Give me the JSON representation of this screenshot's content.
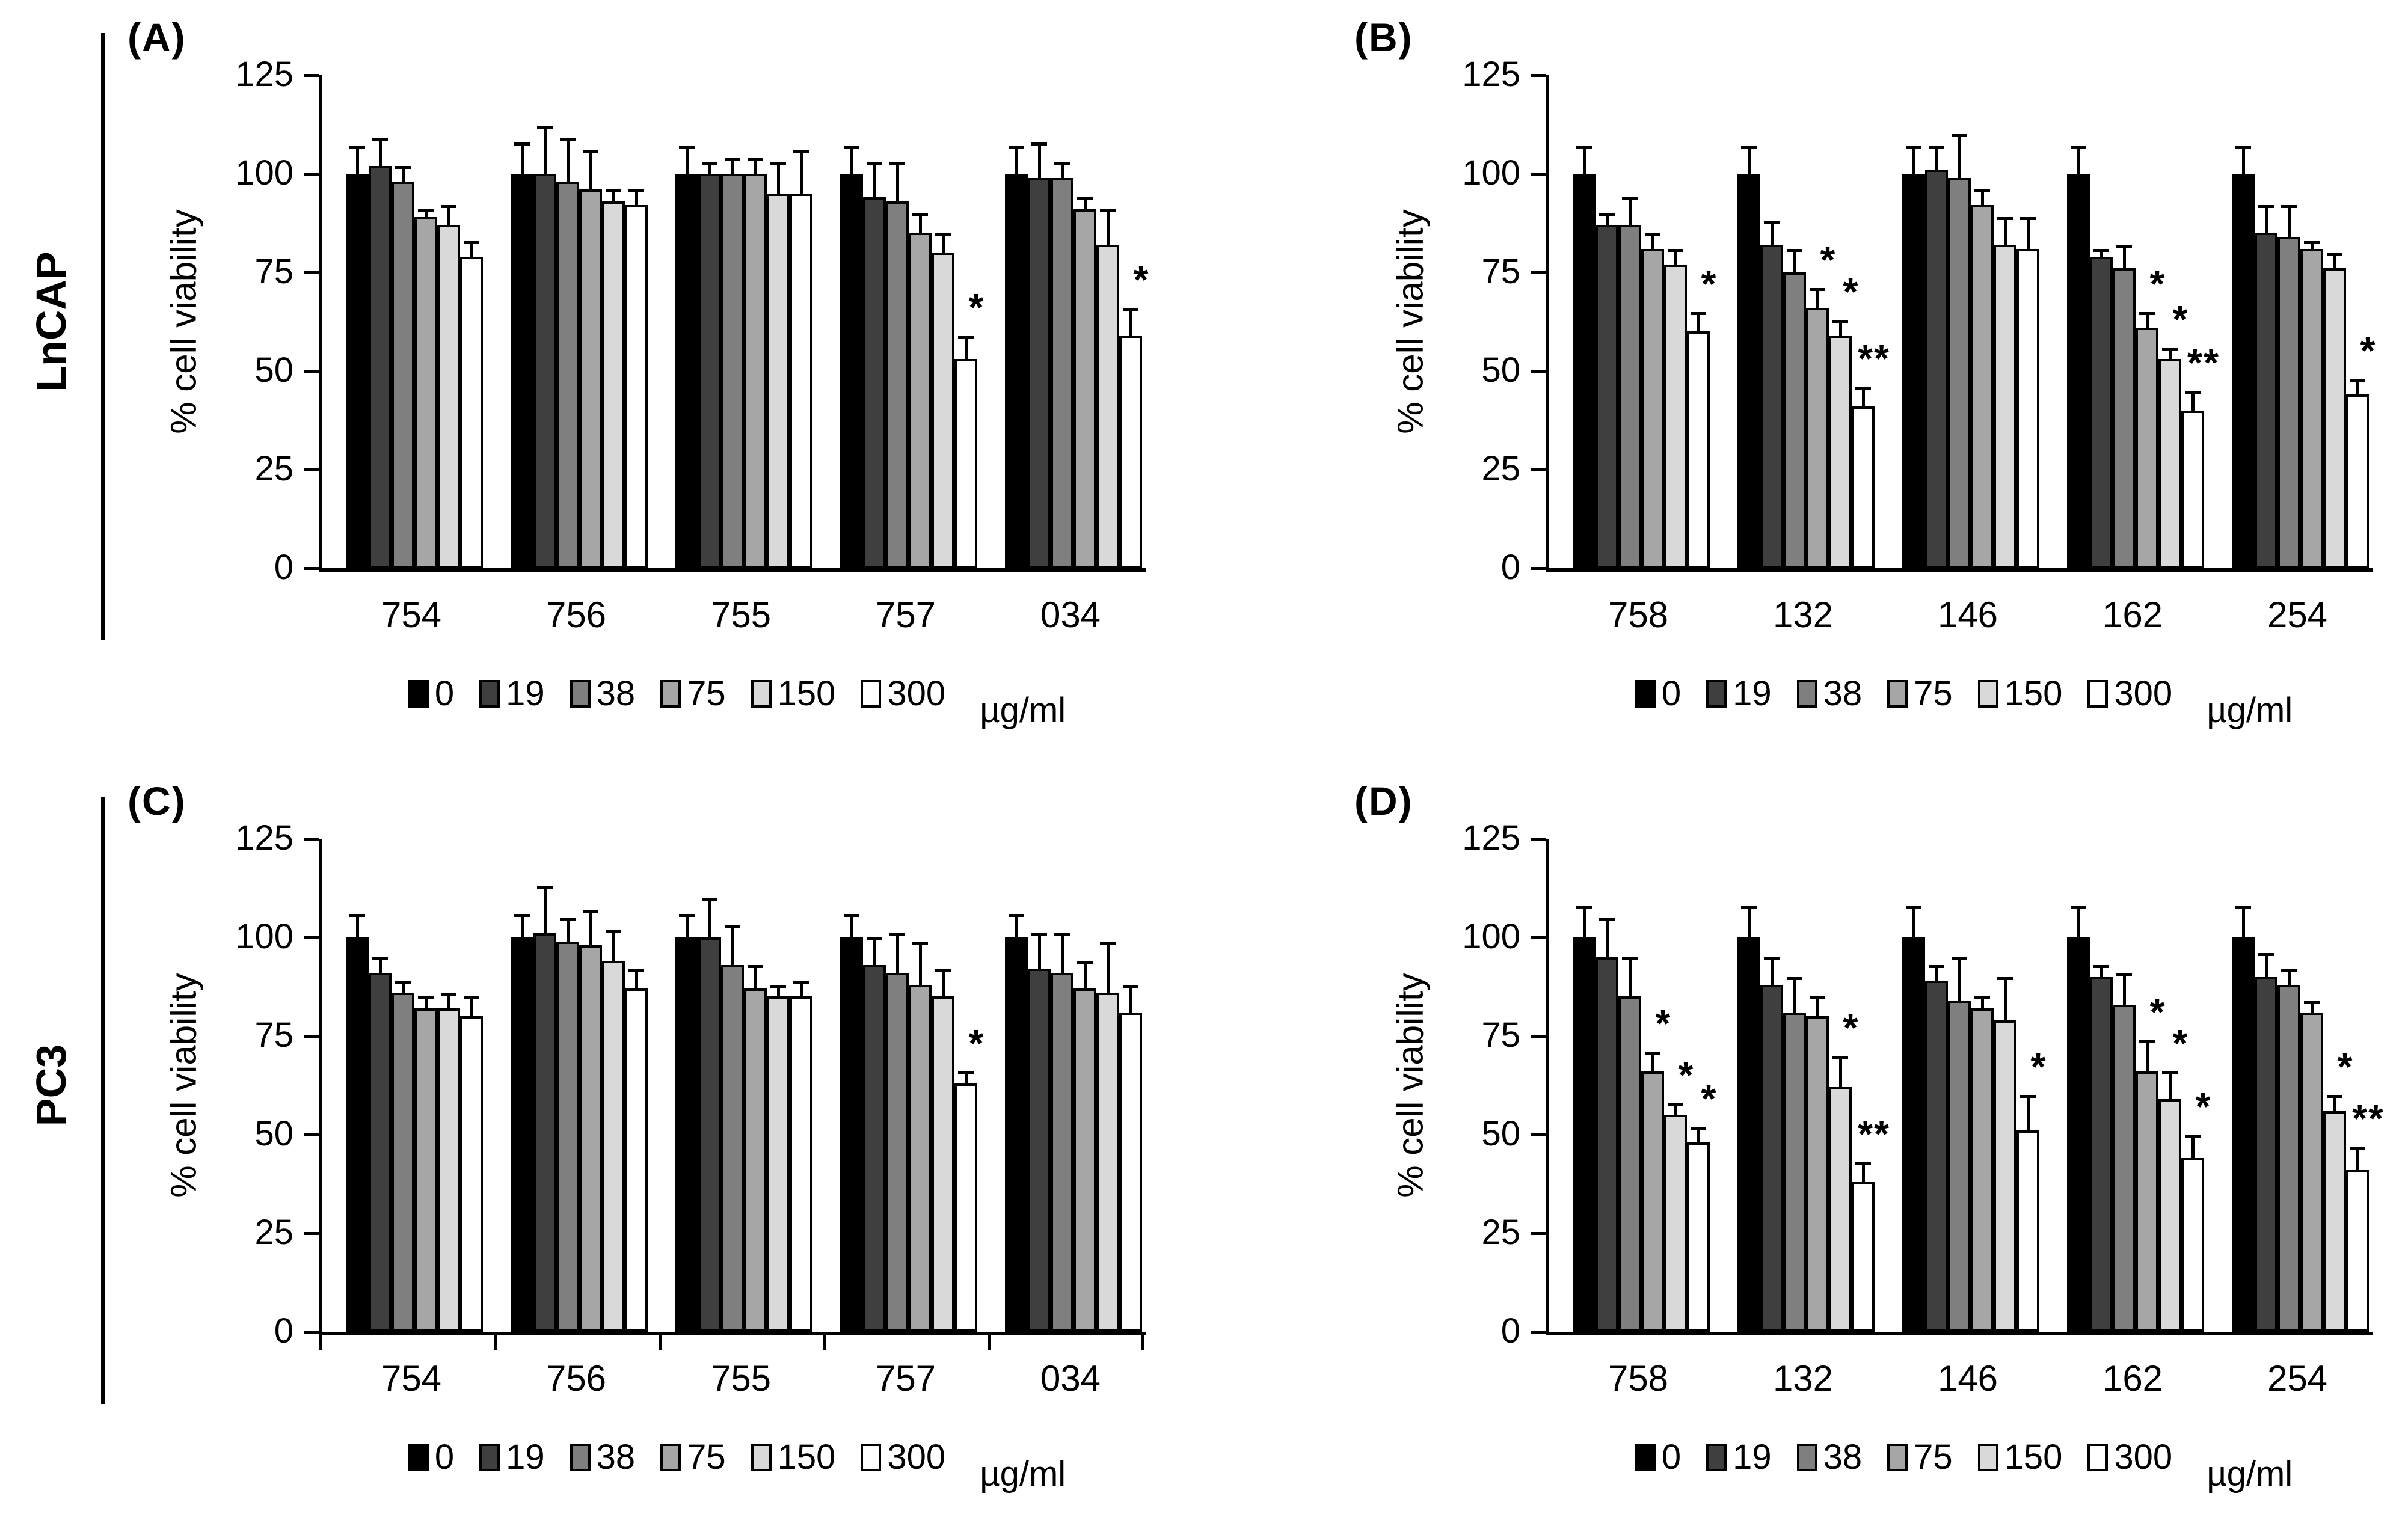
{
  "figure_title": "",
  "rows": [
    {
      "label": "LnCAP"
    },
    {
      "label": "PC3"
    }
  ],
  "legend": {
    "items": [
      {
        "label": "0",
        "color": "#000000"
      },
      {
        "label": "19",
        "color": "#3f3f3f"
      },
      {
        "label": "38",
        "color": "#7f7f7f"
      },
      {
        "label": "75",
        "color": "#a6a6a6"
      },
      {
        "label": "150",
        "color": "#d9d9d9"
      },
      {
        "label": "300",
        "color": "#ffffff"
      }
    ],
    "unit": "µg/ml"
  },
  "style": {
    "series_colors": [
      "#000000",
      "#3f3f3f",
      "#7f7f7f",
      "#a6a6a6",
      "#d9d9d9",
      "#ffffff"
    ],
    "axis_color": "#000000",
    "background": "#ffffff"
  },
  "chart_data": [
    {
      "id": "A",
      "panel_label": "(A)",
      "cell_line": "LnCAP",
      "type": "bar",
      "ylabel": "% cell viability",
      "xlabel": "",
      "ylim": [
        0,
        125
      ],
      "yticks": [
        0,
        25,
        50,
        75,
        100,
        125
      ],
      "grid": false,
      "legend_position": "bottom",
      "series_labels": [
        "0",
        "19",
        "38",
        "75",
        "150",
        "300"
      ],
      "series_unit": "µg/ml",
      "categories": [
        "754",
        "756",
        "755",
        "757",
        "034"
      ],
      "x_boundary_ticks": false,
      "groups": [
        {
          "category": "754",
          "values": [
            100,
            102,
            98,
            89,
            87,
            79
          ],
          "errors": [
            7,
            7,
            4,
            2,
            5,
            4
          ],
          "sig": [
            "",
            "",
            "",
            "",
            "",
            ""
          ]
        },
        {
          "category": "756",
          "values": [
            100,
            100,
            98,
            96,
            93,
            92
          ],
          "errors": [
            8,
            12,
            11,
            10,
            3,
            4
          ],
          "sig": [
            "",
            "",
            "",
            "",
            "",
            ""
          ]
        },
        {
          "category": "755",
          "values": [
            100,
            100,
            100,
            100,
            95,
            95
          ],
          "errors": [
            7,
            3,
            4,
            4,
            8,
            11
          ],
          "sig": [
            "",
            "",
            "",
            "",
            "",
            ""
          ]
        },
        {
          "category": "757",
          "values": [
            100,
            94,
            93,
            85,
            80,
            53
          ],
          "errors": [
            7,
            9,
            10,
            5,
            5,
            6
          ],
          "sig": [
            "",
            "",
            "",
            "",
            "",
            "*"
          ]
        },
        {
          "category": "034",
          "values": [
            100,
            99,
            99,
            91,
            82,
            59
          ],
          "errors": [
            7,
            9,
            4,
            3,
            9,
            7
          ],
          "sig": [
            "",
            "",
            "",
            "",
            "",
            "*"
          ]
        }
      ]
    },
    {
      "id": "B",
      "panel_label": "(B)",
      "cell_line": "LnCAP",
      "type": "bar",
      "ylabel": "% cell viability",
      "xlabel": "",
      "ylim": [
        0,
        125
      ],
      "yticks": [
        0,
        25,
        50,
        75,
        100,
        125
      ],
      "grid": false,
      "legend_position": "bottom",
      "series_labels": [
        "0",
        "19",
        "38",
        "75",
        "150",
        "300"
      ],
      "series_unit": "µg/ml",
      "categories": [
        "758",
        "132",
        "146",
        "162",
        "254"
      ],
      "x_boundary_ticks": false,
      "groups": [
        {
          "category": "758",
          "values": [
            100,
            87,
            87,
            81,
            77,
            60
          ],
          "errors": [
            7,
            3,
            7,
            4,
            4,
            5
          ],
          "sig": [
            "",
            "",
            "",
            "",
            "",
            "*"
          ]
        },
        {
          "category": "132",
          "values": [
            100,
            82,
            75,
            66,
            59,
            41
          ],
          "errors": [
            7,
            6,
            6,
            5,
            4,
            5
          ],
          "sig": [
            "",
            "",
            "",
            "*",
            "*",
            "**"
          ]
        },
        {
          "category": "146",
          "values": [
            100,
            101,
            99,
            92,
            82,
            81
          ],
          "errors": [
            7,
            6,
            11,
            4,
            7,
            8
          ],
          "sig": [
            "",
            "",
            "",
            "",
            "",
            ""
          ]
        },
        {
          "category": "162",
          "values": [
            100,
            79,
            76,
            61,
            53,
            40
          ],
          "errors": [
            7,
            2,
            6,
            4,
            3,
            5
          ],
          "sig": [
            "",
            "",
            "",
            "*",
            "*",
            "**"
          ]
        },
        {
          "category": "254",
          "values": [
            100,
            85,
            84,
            81,
            76,
            44
          ],
          "errors": [
            7,
            7,
            8,
            2,
            4,
            4
          ],
          "sig": [
            "",
            "",
            "",
            "",
            "",
            "*"
          ]
        }
      ]
    },
    {
      "id": "C",
      "panel_label": "(C)",
      "cell_line": "PC3",
      "type": "bar",
      "ylabel": "% cell viability",
      "xlabel": "",
      "ylim": [
        0,
        125
      ],
      "yticks": [
        0,
        25,
        50,
        75,
        100,
        125
      ],
      "grid": false,
      "legend_position": "bottom",
      "series_labels": [
        "0",
        "19",
        "38",
        "75",
        "150",
        "300"
      ],
      "series_unit": "µg/ml",
      "categories": [
        "754",
        "756",
        "755",
        "757",
        "034"
      ],
      "x_boundary_ticks": true,
      "groups": [
        {
          "category": "754",
          "values": [
            100,
            91,
            86,
            82,
            82,
            80
          ],
          "errors": [
            6,
            4,
            3,
            3,
            4,
            5
          ],
          "sig": [
            "",
            "",
            "",
            "",
            "",
            ""
          ]
        },
        {
          "category": "756",
          "values": [
            100,
            101,
            99,
            98,
            94,
            87
          ],
          "errors": [
            6,
            12,
            6,
            9,
            8,
            5
          ],
          "sig": [
            "",
            "",
            "",
            "",
            "",
            ""
          ]
        },
        {
          "category": "755",
          "values": [
            100,
            100,
            93,
            87,
            85,
            85
          ],
          "errors": [
            6,
            10,
            10,
            6,
            3,
            4
          ],
          "sig": [
            "",
            "",
            "",
            "",
            "",
            ""
          ]
        },
        {
          "category": "757",
          "values": [
            100,
            93,
            91,
            88,
            85,
            63
          ],
          "errors": [
            6,
            7,
            10,
            11,
            7,
            3
          ],
          "sig": [
            "",
            "",
            "",
            "",
            "",
            "*"
          ]
        },
        {
          "category": "034",
          "values": [
            100,
            92,
            91,
            87,
            86,
            81
          ],
          "errors": [
            6,
            9,
            10,
            7,
            13,
            7
          ],
          "sig": [
            "",
            "",
            "",
            "",
            "",
            ""
          ]
        }
      ]
    },
    {
      "id": "D",
      "panel_label": "(D)",
      "cell_line": "PC3",
      "type": "bar",
      "ylabel": "% cell viability",
      "xlabel": "",
      "ylim": [
        0,
        125
      ],
      "yticks": [
        0,
        25,
        50,
        75,
        100,
        125
      ],
      "grid": false,
      "legend_position": "bottom",
      "series_labels": [
        "0",
        "19",
        "38",
        "75",
        "150",
        "300"
      ],
      "series_unit": "µg/ml",
      "categories": [
        "758",
        "132",
        "146",
        "162",
        "254"
      ],
      "x_boundary_ticks": false,
      "groups": [
        {
          "category": "758",
          "values": [
            100,
            95,
            85,
            66,
            55,
            48
          ],
          "errors": [
            8,
            10,
            10,
            5,
            3,
            4
          ],
          "sig": [
            "",
            "",
            "",
            "*",
            "*",
            "*"
          ]
        },
        {
          "category": "132",
          "values": [
            100,
            88,
            81,
            80,
            62,
            38
          ],
          "errors": [
            8,
            7,
            9,
            5,
            8,
            5
          ],
          "sig": [
            "",
            "",
            "",
            "",
            "*",
            "**"
          ]
        },
        {
          "category": "146",
          "values": [
            100,
            89,
            84,
            82,
            79,
            51
          ],
          "errors": [
            8,
            4,
            11,
            3,
            11,
            9
          ],
          "sig": [
            "",
            "",
            "",
            "",
            "",
            "*"
          ]
        },
        {
          "category": "162",
          "values": [
            100,
            90,
            83,
            66,
            59,
            44
          ],
          "errors": [
            8,
            3,
            8,
            8,
            7,
            6
          ],
          "sig": [
            "",
            "",
            "",
            "*",
            "*",
            "*"
          ]
        },
        {
          "category": "254",
          "values": [
            100,
            90,
            88,
            81,
            56,
            41
          ],
          "errors": [
            8,
            6,
            4,
            3,
            4,
            6
          ],
          "sig": [
            "",
            "",
            "",
            "",
            "*",
            "**"
          ]
        }
      ]
    }
  ]
}
